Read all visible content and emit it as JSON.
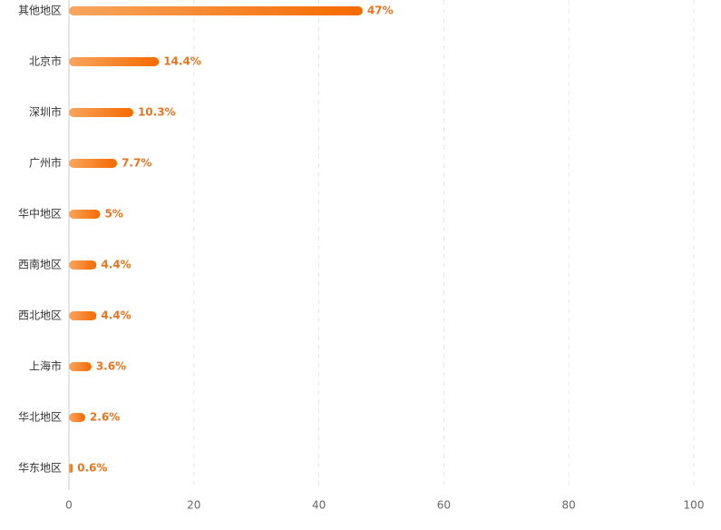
{
  "chart_data": {
    "type": "bar",
    "orientation": "horizontal",
    "categories": [
      "其他地区",
      "北京市",
      "深圳市",
      "广州市",
      "华中地区",
      "西南地区",
      "西北地区",
      "上海市",
      "华北地区",
      "华东地区"
    ],
    "values": [
      47,
      14.4,
      10.3,
      7.7,
      5,
      4.4,
      4.4,
      3.6,
      2.6,
      0.6
    ],
    "value_labels": [
      "47%",
      "14.4%",
      "10.3%",
      "7.7%",
      "5%",
      "4.4%",
      "4.4%",
      "3.6%",
      "2.6%",
      "0.6%"
    ],
    "color": [
      "#f9a55e",
      "#f56a00"
    ],
    "xlim": [
      0,
      100
    ],
    "xticks": [
      0,
      20,
      40,
      60,
      80,
      100
    ],
    "grid": true
  }
}
